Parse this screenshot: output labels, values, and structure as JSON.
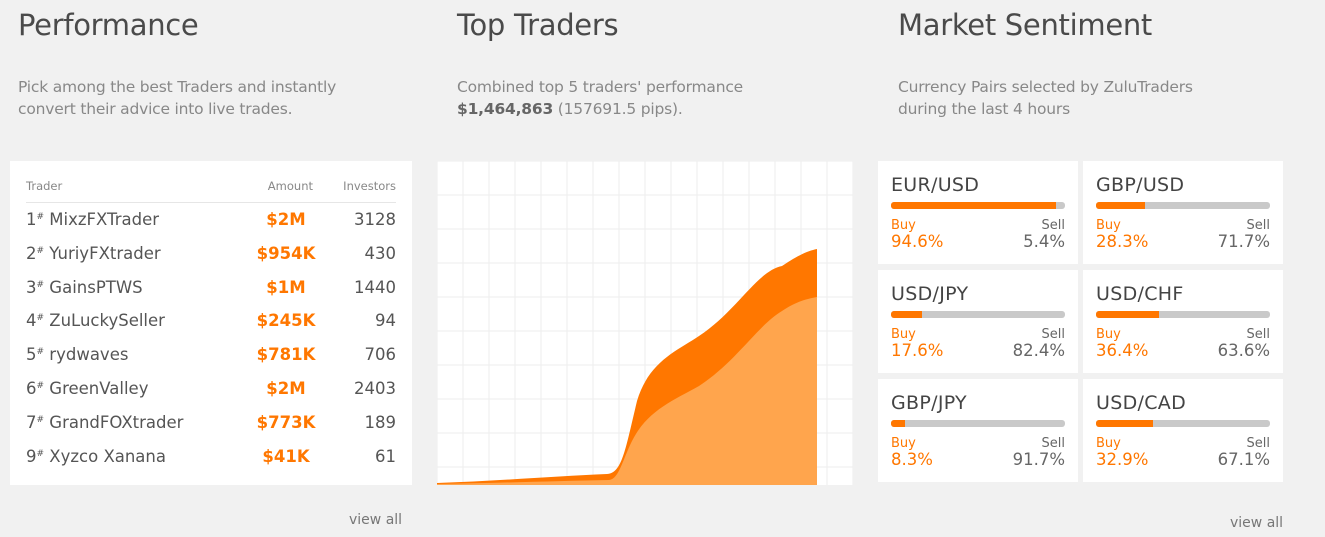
{
  "performance": {
    "title": "Performance",
    "desc_line1": "Pick among the best Traders and instantly",
    "desc_line2": "convert their advice into live trades.",
    "columns": {
      "trader": "Trader",
      "amount": "Amount",
      "investors": "Investors"
    },
    "rows": [
      {
        "rank": "1",
        "name": "MixzFXTrader",
        "amount": "$2M",
        "investors": "3128"
      },
      {
        "rank": "2",
        "name": "YuriyFXtrader",
        "amount": "$954K",
        "investors": "430"
      },
      {
        "rank": "3",
        "name": "GainsPTWS",
        "amount": "$1M",
        "investors": "1440"
      },
      {
        "rank": "4",
        "name": "ZuLuckySeller",
        "amount": "$245K",
        "investors": "94"
      },
      {
        "rank": "5",
        "name": "rydwaves",
        "amount": "$781K",
        "investors": "706"
      },
      {
        "rank": "6",
        "name": "GreenValley",
        "amount": "$2M",
        "investors": "2403"
      },
      {
        "rank": "7",
        "name": "GrandFOXtrader",
        "amount": "$773K",
        "investors": "189"
      },
      {
        "rank": "9",
        "name": "Xyzco Xanana",
        "amount": "$41K",
        "investors": "61"
      }
    ],
    "rank_suffix": "#",
    "view_all": "view all"
  },
  "top_traders": {
    "title": "Top Traders",
    "desc_line1": "Combined top 5 traders' performance",
    "desc_amount": "$1,464,863",
    "desc_pips": " (157691.5 pips).",
    "colors": {
      "upper": "#ff7700",
      "lower": "#ffa54d",
      "grid": "#eeeeee"
    }
  },
  "sentiment": {
    "title": "Market Sentiment",
    "desc_line1": "Currency Pairs selected by ZuluTraders",
    "desc_line2": "during the last 4 hours",
    "buy_label": "Buy",
    "sell_label": "Sell",
    "pairs": [
      {
        "name": "EUR/USD",
        "buy": 94.6,
        "sell": 5.4,
        "buy_text": "94.6%",
        "sell_text": "5.4%"
      },
      {
        "name": "GBP/USD",
        "buy": 28.3,
        "sell": 71.7,
        "buy_text": "28.3%",
        "sell_text": "71.7%"
      },
      {
        "name": "USD/JPY",
        "buy": 17.6,
        "sell": 82.4,
        "buy_text": "17.6%",
        "sell_text": "82.4%"
      },
      {
        "name": "USD/CHF",
        "buy": 36.4,
        "sell": 63.6,
        "buy_text": "36.4%",
        "sell_text": "63.6%"
      },
      {
        "name": "GBP/JPY",
        "buy": 8.3,
        "sell": 91.7,
        "buy_text": "8.3%",
        "sell_text": "91.7%"
      },
      {
        "name": "USD/CAD",
        "buy": 32.9,
        "sell": 67.1,
        "buy_text": "32.9%",
        "sell_text": "67.1%"
      }
    ],
    "view_all": "view all"
  }
}
